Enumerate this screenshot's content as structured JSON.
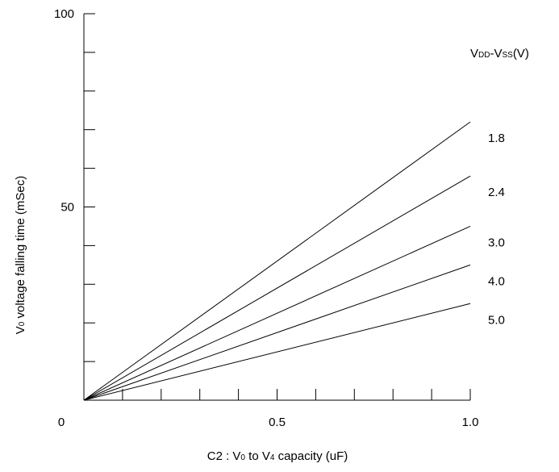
{
  "chart_data": {
    "type": "line",
    "title": "",
    "xlabel": {
      "prefix": "C2 : V",
      "sub1": "0",
      "mid": " to V",
      "sub2": "4",
      "suffix": " capacity (uF)"
    },
    "ylabel": {
      "prefix": "V",
      "sub": "0",
      "suffix": " voltage falling time (mSec)"
    },
    "xlim": [
      0,
      1.0
    ],
    "ylim": [
      0,
      100
    ],
    "x_major_ticks": [
      0,
      0.5,
      1.0
    ],
    "x_tick_labels": [
      "0",
      "0.5",
      "1.0"
    ],
    "x_minor_step": 0.1,
    "y_major_ticks": [
      50,
      100
    ],
    "y_tick_labels": [
      "50",
      "100"
    ],
    "y_minor_step": 10,
    "grid": false,
    "legend_title": {
      "a": "V",
      "a_sub": "DD",
      "mid": "-V",
      "b_sub": "SS",
      "suffix": "(V)"
    },
    "series": [
      {
        "name": "1.8",
        "x": [
          0,
          1.0
        ],
        "y": [
          0,
          72
        ]
      },
      {
        "name": "2.4",
        "x": [
          0,
          1.0
        ],
        "y": [
          0,
          58
        ]
      },
      {
        "name": "3.0",
        "x": [
          0,
          1.0
        ],
        "y": [
          0,
          45
        ]
      },
      {
        "name": "4.0",
        "x": [
          0,
          1.0
        ],
        "y": [
          0,
          35
        ]
      },
      {
        "name": "5.0",
        "x": [
          0,
          1.0
        ],
        "y": [
          0,
          25
        ]
      }
    ]
  }
}
